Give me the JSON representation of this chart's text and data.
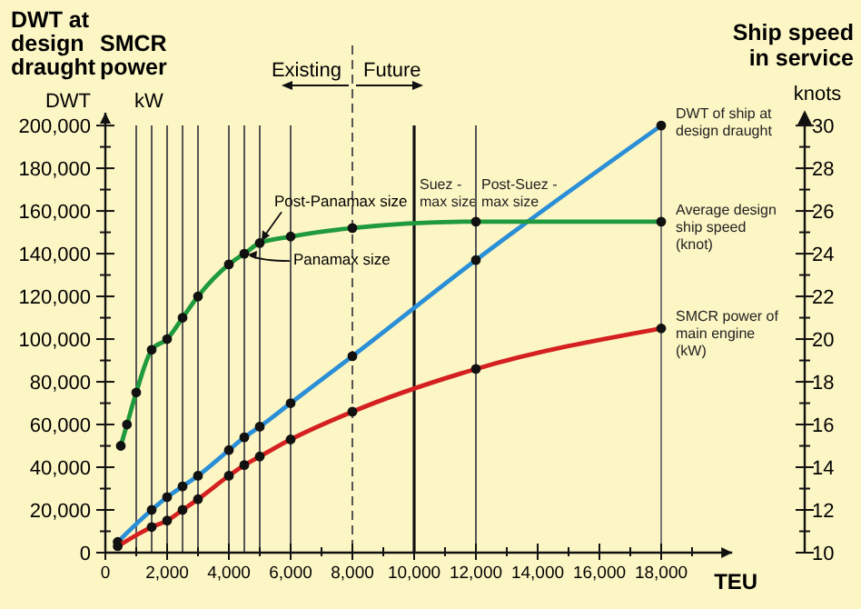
{
  "chart_data": {
    "type": "line",
    "xlabel": "TEU",
    "ylabel": "DWT at design draught",
    "y2label": "Ship speed in service",
    "xlim": [
      0,
      20300
    ],
    "xticks": [
      0,
      {
        "value": 1000,
        "label": null
      },
      {
        "value": 2000,
        "label": "2,000"
      },
      {
        "value": 3000,
        "label": null
      },
      {
        "value": 4000,
        "label": "4,000"
      },
      {
        "value": 5000,
        "label": null
      },
      {
        "value": 6000,
        "label": "6,000"
      },
      {
        "value": 7000,
        "label": null
      },
      {
        "value": 8000,
        "label": "8,000"
      },
      {
        "value": 9000,
        "label": null
      },
      {
        "value": 10000,
        "label": "10,000"
      },
      {
        "value": 11000,
        "label": null
      },
      {
        "value": 12000,
        "label": "12,000"
      },
      {
        "value": 13000,
        "label": null
      },
      {
        "value": 14000,
        "label": "14,000"
      },
      {
        "value": 15000,
        "label": null
      },
      {
        "value": 16000,
        "label": "16,000"
      },
      {
        "value": 17000,
        "label": null
      },
      {
        "value": 18000,
        "label": "18,000"
      },
      {
        "value": 19000,
        "label": null
      }
    ],
    "ylim": [
      0,
      206000
    ],
    "yticks": [
      0,
      {
        "value": 10000,
        "label": null
      },
      {
        "value": 20000,
        "label": "20,000"
      },
      {
        "value": 30000,
        "label": null
      },
      {
        "value": 40000,
        "label": "40,000"
      },
      {
        "value": 50000,
        "label": null
      },
      {
        "value": 60000,
        "label": "60,000"
      },
      {
        "value": 70000,
        "label": null
      },
      {
        "value": 80000,
        "label": "80,000"
      },
      {
        "value": 90000,
        "label": null
      },
      {
        "value": 100000,
        "label": "100,000"
      },
      {
        "value": 110000,
        "label": null
      },
      {
        "value": 120000,
        "label": "120,000"
      },
      {
        "value": 130000,
        "label": null
      },
      {
        "value": 140000,
        "label": "140,000"
      },
      {
        "value": 150000,
        "label": null
      },
      {
        "value": 160000,
        "label": "160,000"
      },
      {
        "value": 170000,
        "label": null
      },
      {
        "value": 180000,
        "label": "180,000"
      },
      {
        "value": 190000,
        "label": null
      },
      {
        "value": 200000,
        "label": "200,000"
      }
    ],
    "y2lim": [
      10,
      30.6
    ],
    "y2ticks": [
      10,
      {
        "value": 11,
        "label": null
      },
      12,
      {
        "value": 13,
        "label": null
      },
      14,
      {
        "value": 15,
        "label": null
      },
      16,
      {
        "value": 17,
        "label": null
      },
      18,
      {
        "value": 19,
        "label": null
      },
      20,
      {
        "value": 21,
        "label": null
      },
      22,
      {
        "value": 23,
        "label": null
      },
      24,
      {
        "value": 25,
        "label": null
      },
      26,
      {
        "value": 27,
        "label": null
      },
      28,
      {
        "value": 29,
        "label": null
      },
      30
    ],
    "marker": "circle",
    "line_style": "solid",
    "grid": false,
    "legend": "right",
    "series": [
      {
        "name": "DWT of ship at design draught",
        "color": "#2a8fd6",
        "x": [
          400,
          1500,
          2000,
          2500,
          3000,
          4000,
          4500,
          5000,
          6000,
          8000,
          12000,
          18000
        ],
        "values": [
          5000,
          20000,
          26000,
          31000,
          36000,
          48000,
          54000,
          59000,
          70000,
          92000,
          137000,
          200000
        ]
      },
      {
        "name": "Average design ship speed (knot)",
        "axis": "y2",
        "color": "#1f9a3c",
        "x": [
          500,
          700,
          1000,
          1500,
          2000,
          2500,
          3000,
          4000,
          4500,
          5000,
          6000,
          8000,
          12000,
          18000
        ],
        "values": [
          15,
          16,
          17.5,
          19.5,
          20,
          21,
          22,
          23.5,
          24,
          24.5,
          24.8,
          25.2,
          25.5,
          25.5
        ]
      },
      {
        "name": "SMCR power of main engine (kW)",
        "color": "#d42020",
        "x": [
          400,
          1500,
          2000,
          2500,
          3000,
          4000,
          4500,
          5000,
          6000,
          8000,
          12000,
          18000
        ],
        "values": [
          3000,
          12000,
          15000,
          20000,
          25000,
          36000,
          41000,
          45000,
          53000,
          66000,
          86000,
          105000
        ]
      }
    ],
    "ref_lines": [
      {
        "axis": "x",
        "value": 1000,
        "color": "#555555"
      },
      {
        "axis": "x",
        "value": 1500,
        "color": "#555555"
      },
      {
        "axis": "x",
        "value": 2000,
        "color": "#555555"
      },
      {
        "axis": "x",
        "value": 2500,
        "color": "#555555"
      },
      {
        "axis": "x",
        "value": 3000,
        "color": "#555555"
      },
      {
        "axis": "x",
        "value": 4000,
        "color": "#555555"
      },
      {
        "axis": "x",
        "value": 4500,
        "color": "#555555"
      },
      {
        "axis": "x",
        "value": 5000,
        "color": "#555555"
      },
      {
        "axis": "x",
        "value": 6000,
        "color": "#555555"
      },
      {
        "axis": "x",
        "value": 8000,
        "color": "#555555",
        "line_style": "dashed"
      },
      {
        "axis": "x",
        "value": 10000,
        "color": "#111111",
        "label": "Suez - max size"
      },
      {
        "axis": "x",
        "value": 12000,
        "color": "#555555",
        "label": "Post-Suez - max size"
      },
      {
        "axis": "x",
        "value": 18000,
        "color": "#777777"
      }
    ],
    "annotations": [
      "DWT",
      "SMCR power",
      "kW",
      "knots",
      "Existing",
      "Future",
      {
        "text": "Post-Panamax size",
        "x": 5000,
        "y": 145000
      },
      {
        "text": "Panamax size",
        "x": 4500,
        "y": 140000
      }
    ]
  }
}
